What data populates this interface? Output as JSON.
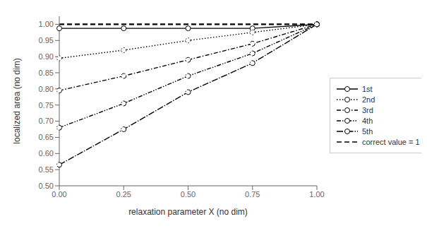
{
  "chart_data": {
    "type": "line",
    "xlabel": "relaxation parameter X (no dim)",
    "ylabel": "localized area (no dim)",
    "x": [
      0.0,
      0.25,
      0.5,
      0.75,
      1.0
    ],
    "series": [
      {
        "name": "1st",
        "color": "#000000",
        "line_style": "solid",
        "marker": "circle",
        "values": [
          0.9875,
          0.9875,
          0.9875,
          0.9875,
          1.0
        ]
      },
      {
        "name": "2nd",
        "color": "#000000",
        "line_style": "dotted",
        "marker": "circle",
        "values": [
          0.895,
          0.92,
          0.95,
          0.975,
          1.0
        ]
      },
      {
        "name": "3rd",
        "color": "#000000",
        "line_style": "dashdot",
        "marker": "circle",
        "values": [
          0.795,
          0.84,
          0.89,
          0.94,
          1.0
        ]
      },
      {
        "name": "4th",
        "color": "#000000",
        "line_style": "dash_dot_dot",
        "marker": "circle",
        "values": [
          0.68,
          0.755,
          0.84,
          0.91,
          1.0
        ]
      },
      {
        "name": "5th",
        "color": "#000000",
        "line_style": "long_dash_dot",
        "marker": "circle",
        "values": [
          0.565,
          0.675,
          0.79,
          0.88,
          1.0
        ]
      },
      {
        "name": "correct value = 1",
        "color": "#000000",
        "line_style": "dashed",
        "marker": "none",
        "x": [
          0.0,
          1.0
        ],
        "values": [
          1.0,
          1.0
        ]
      }
    ],
    "xlim": [
      0.0,
      1.0
    ],
    "ylim": [
      0.5,
      1.025
    ],
    "xticks": [
      {
        "value": 0.0,
        "label": "0.00"
      },
      0.25,
      {
        "value": 0.5,
        "label": "0.50"
      },
      0.75,
      {
        "value": 1.0,
        "label": "1.00"
      }
    ],
    "yticks": [
      {
        "value": 0.5,
        "label": "0.50"
      },
      0.55,
      {
        "value": 0.6,
        "label": "0.60"
      },
      0.65,
      {
        "value": 0.7,
        "label": "0.70"
      },
      0.75,
      {
        "value": 0.8,
        "label": "0.80"
      },
      0.85,
      {
        "value": 0.9,
        "label": "0.90"
      },
      0.95,
      {
        "value": 1.0,
        "label": "1.00"
      }
    ],
    "grid": false,
    "legend": "right"
  }
}
